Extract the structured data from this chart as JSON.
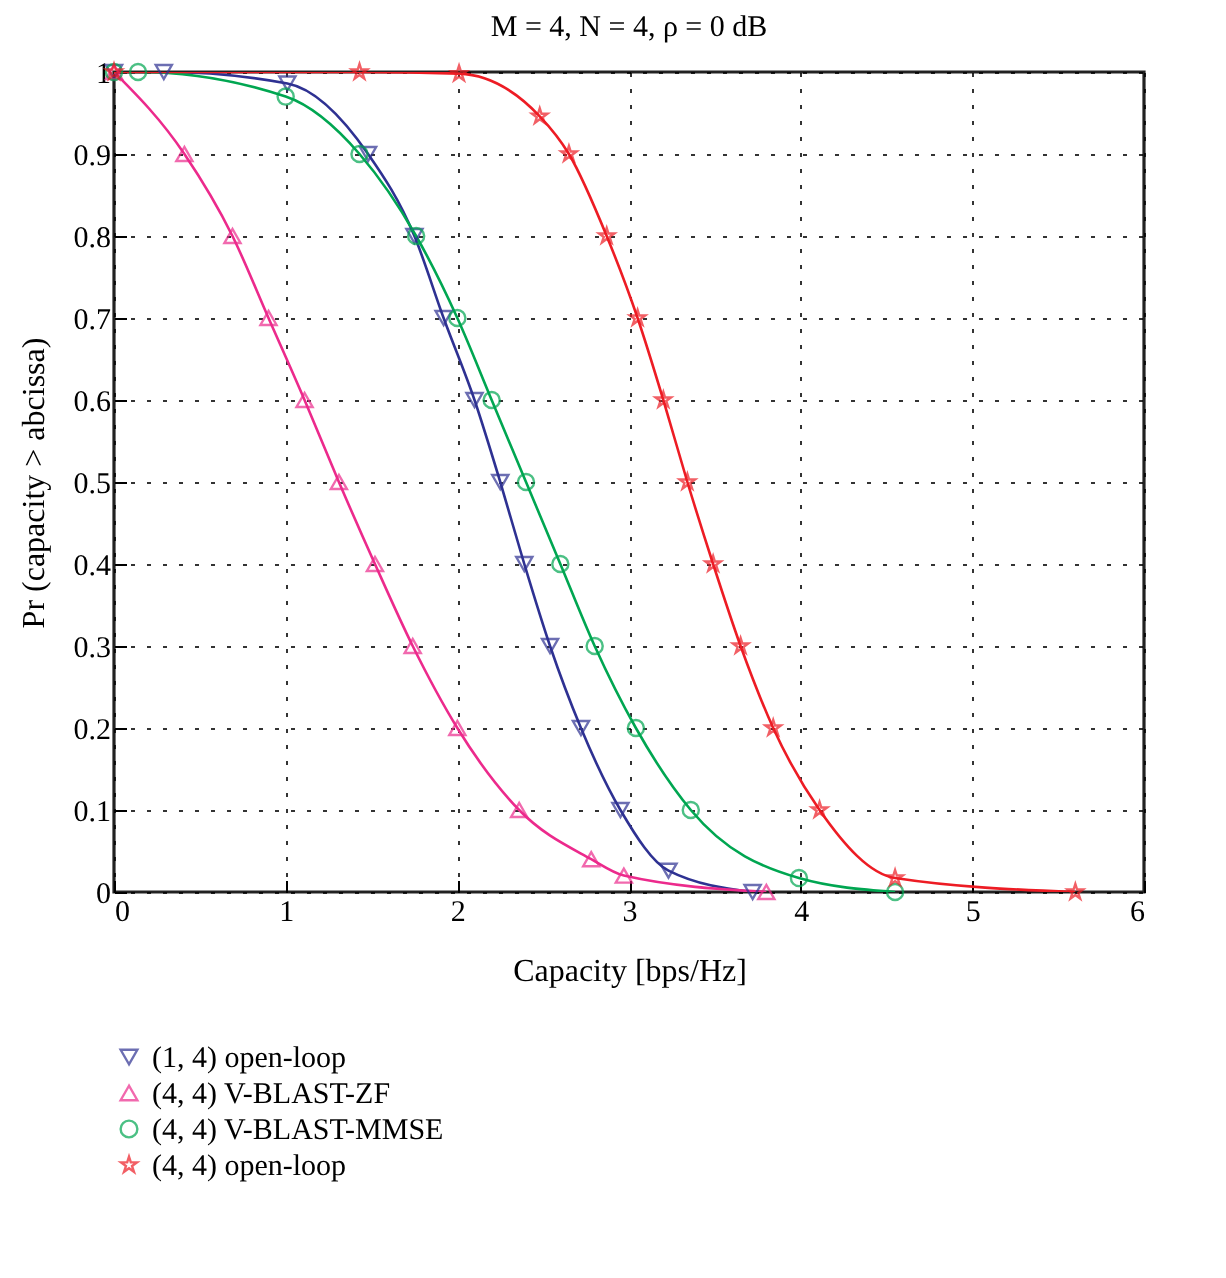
{
  "chart_data": {
    "type": "line",
    "title": "M = 4, N = 4, ρ = 0 dB",
    "xlabel": "Capacity [bps/Hz]",
    "ylabel": "Pr (capacity > abcissa)",
    "series": [
      {
        "name": "(1, 4) open-loop",
        "color": "#2e3192",
        "marker": "triangle-down",
        "x": [
          0,
          0.29,
          1.01,
          1.48,
          1.75,
          1.92,
          2.1,
          2.25,
          2.39,
          2.54,
          2.72,
          2.95,
          3.23,
          3.72
        ],
        "values": [
          1,
          1,
          0.986,
          0.9,
          0.8,
          0.7,
          0.6,
          0.5,
          0.4,
          0.3,
          0.2,
          0.1,
          0.026,
          0
        ]
      },
      {
        "name": "(4, 4) V-BLAST-ZF",
        "color": "#ec2a8c",
        "marker": "triangle",
        "x": [
          0,
          0.41,
          0.69,
          0.9,
          1.11,
          1.31,
          1.52,
          1.74,
          2.0,
          2.36,
          2.78,
          2.97,
          3.8
        ],
        "values": [
          1,
          0.9,
          0.8,
          0.7,
          0.6,
          0.5,
          0.4,
          0.3,
          0.2,
          0.1,
          0.04,
          0.02,
          0
        ]
      },
      {
        "name": "(4, 4) V-BLAST-MMSE",
        "color": "#00a651",
        "marker": "circle",
        "x": [
          0,
          0.14,
          1.0,
          1.43,
          1.76,
          2.0,
          2.2,
          2.4,
          2.6,
          2.8,
          3.04,
          3.36,
          3.99,
          4.55
        ],
        "values": [
          1,
          1,
          0.97,
          0.9,
          0.8,
          0.7,
          0.6,
          0.5,
          0.4,
          0.3,
          0.2,
          0.1,
          0.017,
          0
        ]
      },
      {
        "name": "(4, 4) open-loop",
        "color": "#ed1c24",
        "marker": "star",
        "x": [
          0,
          1.43,
          2.01,
          2.48,
          2.65,
          2.87,
          3.05,
          3.2,
          3.34,
          3.49,
          3.65,
          3.84,
          4.11,
          4.55,
          5.6
        ],
        "values": [
          1,
          1,
          0.998,
          0.946,
          0.9,
          0.8,
          0.7,
          0.6,
          0.5,
          0.4,
          0.3,
          0.2,
          0.1,
          0.017,
          0
        ]
      }
    ],
    "xlim": [
      0,
      6
    ],
    "xticks": [
      0,
      1,
      2,
      3,
      4,
      5,
      6
    ],
    "ylim": [
      0,
      1
    ],
    "yticks": [
      0,
      0.1,
      0.2,
      0.3,
      0.4,
      0.5,
      0.6,
      0.7,
      0.8,
      0.9,
      1
    ],
    "grid": true,
    "legend": "bottom",
    "line_style": "solid"
  }
}
